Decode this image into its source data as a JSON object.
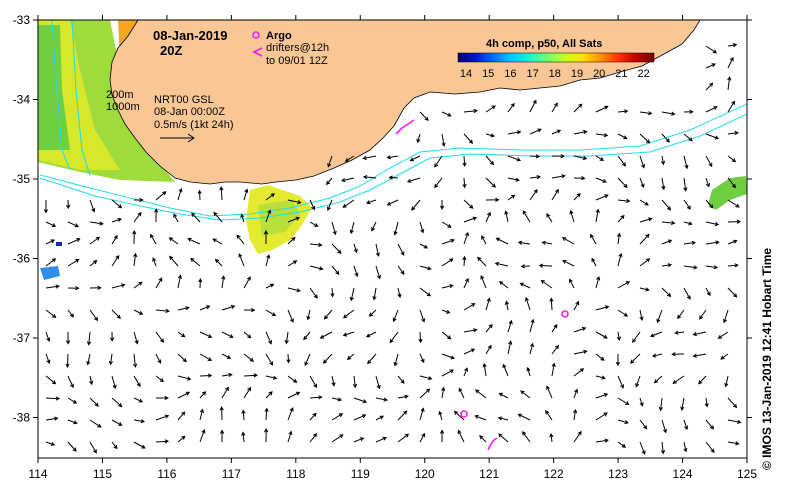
{
  "map": {
    "title_date": "08-Jan-2019",
    "title_time": "20Z",
    "x_ticks": [
      "114",
      "115",
      "116",
      "117",
      "118",
      "119",
      "120",
      "121",
      "122",
      "123",
      "124",
      "125"
    ],
    "y_ticks": [
      "-33",
      "-34",
      "-35",
      "-36",
      "-37",
      "-38"
    ],
    "land_color": "#f9c796",
    "current_color": "#000000",
    "contour_color": "#22dde8"
  },
  "legend": {
    "argo_label": "Argo",
    "drifters_label": "drifters@12h",
    "drifters_to": "to 09/01 12Z",
    "marker_color": "#ee22ee"
  },
  "colorbar": {
    "title": "4h comp, p50, All Sats",
    "ticks": [
      "14",
      "15",
      "16",
      "17",
      "18",
      "19",
      "20",
      "21",
      "22"
    ],
    "colors": [
      "#000070",
      "#0018c8",
      "#0070ff",
      "#00c8ff",
      "#20f0d0",
      "#70ff70",
      "#c8ff20",
      "#ffe000",
      "#ff9000",
      "#ff3000",
      "#c00000",
      "#700000"
    ]
  },
  "annotations": {
    "depth1": "200m",
    "depth2": "1000m",
    "source": "NRT00 GSL",
    "source_date": "08-Jan 00:00Z",
    "scale": "0.5m/s (1kt 24h)"
  },
  "side_text": "© IMOS 13-Jan-2019 12:41 Hobart Time"
}
